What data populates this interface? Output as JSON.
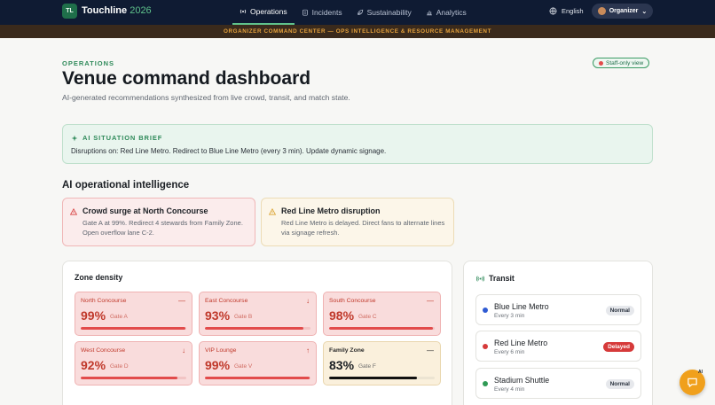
{
  "nav": {
    "logo": "TL",
    "brand": "Touchline",
    "brand_year": "2026",
    "links": [
      {
        "label": "Operations",
        "icon": "broadcast-icon",
        "active": true
      },
      {
        "label": "Incidents",
        "icon": "clipboard-icon",
        "active": false
      },
      {
        "label": "Sustainability",
        "icon": "leaf-icon",
        "active": false
      },
      {
        "label": "Analytics",
        "icon": "bar-chart-icon",
        "active": false
      }
    ],
    "language": "English",
    "role": "Organizer"
  },
  "banner": "ORGANIZER COMMAND CENTER — OPS INTELLIGENCE & RESOURCE MANAGEMENT",
  "header": {
    "eyebrow": "OPERATIONS",
    "title": "Venue command dashboard",
    "subtitle": "AI-generated recommendations synthesized from live crowd, transit, and match state.",
    "staff_pill": "Staff-only view"
  },
  "brief": {
    "heading": "AI SITUATION BRIEF",
    "text": "Disruptions on: Red Line Metro. Redirect to Blue Line Metro (every 3 min). Update dynamic signage."
  },
  "intel": {
    "heading": "AI operational intelligence",
    "alerts": [
      {
        "title": "Crowd surge at North Concourse",
        "body": "Gate A at 99%. Redirect 4 stewards from Family Zone. Open overflow lane C-2.",
        "severity": "critical"
      },
      {
        "title": "Red Line Metro disruption",
        "body": "Red Line Metro is delayed. Direct fans to alternate lines via signage refresh.",
        "severity": "warning"
      }
    ]
  },
  "zones": {
    "heading": "Zone density",
    "items": [
      {
        "name": "North Concourse",
        "pct": "99%",
        "level": 0.99,
        "gate": "Gate A",
        "trend": "—",
        "status": "critical"
      },
      {
        "name": "East Concourse",
        "pct": "93%",
        "level": 0.93,
        "gate": "Gate B",
        "trend": "↓",
        "status": "critical"
      },
      {
        "name": "South Concourse",
        "pct": "98%",
        "level": 0.98,
        "gate": "Gate C",
        "trend": "—",
        "status": "critical"
      },
      {
        "name": "West Concourse",
        "pct": "92%",
        "level": 0.92,
        "gate": "Gate D",
        "trend": "↓",
        "status": "critical"
      },
      {
        "name": "VIP Lounge",
        "pct": "99%",
        "level": 0.99,
        "gate": "Gate V",
        "trend": "↑",
        "status": "critical"
      },
      {
        "name": "Family Zone",
        "pct": "83%",
        "level": 0.83,
        "gate": "Gate F",
        "trend": "—",
        "status": "warning"
      }
    ]
  },
  "transit": {
    "heading": "Transit",
    "lines": [
      {
        "name": "Blue Line Metro",
        "freq": "Every 3 min",
        "status": "Normal",
        "color": "#2f5bd3"
      },
      {
        "name": "Red Line Metro",
        "freq": "Every 6 min",
        "status": "Delayed",
        "color": "#d63a3a"
      },
      {
        "name": "Stadium Shuttle",
        "freq": "Every 4 min",
        "status": "Normal",
        "color": "#2f9a55"
      }
    ]
  },
  "fab": {
    "badge": "AI"
  }
}
